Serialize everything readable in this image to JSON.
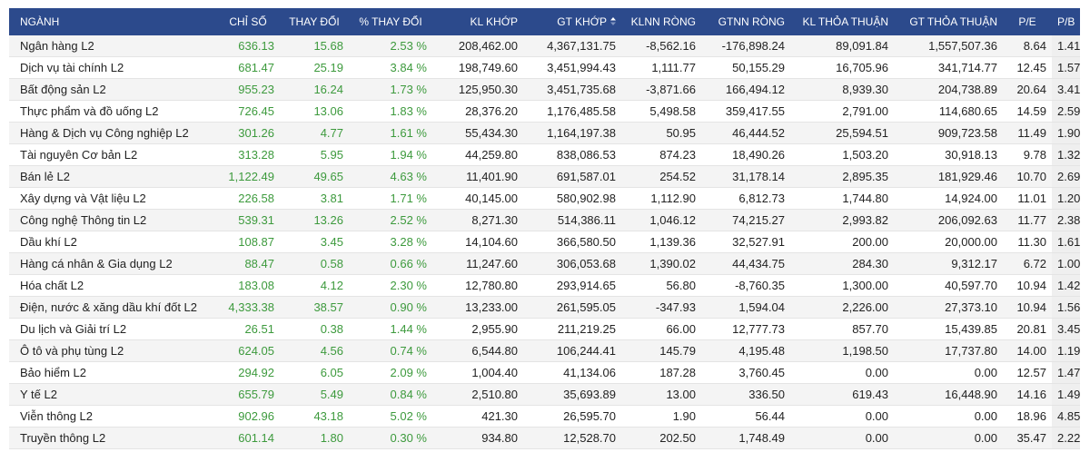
{
  "table": {
    "columns": [
      "NGÀNH",
      "CHỈ SỐ",
      "THAY ĐỔI",
      "% THAY ĐỔI",
      "KL KHỚP",
      "GT KHỚP",
      "KLNN RÒNG",
      "GTNN RÒNG",
      "KL THỎA THUẬN",
      "GT THỎA THUẬN",
      "P/E",
      "P/B"
    ],
    "sort_icon": "sort-arrows-icon",
    "sorted_column": "GT KHỚP",
    "colors": {
      "header_bg": "#2c4a8c",
      "positive": "#3d9a3d"
    },
    "rows": [
      [
        "Ngân hàng L2",
        "636.13",
        "15.68",
        "2.53 %",
        "208,462.00",
        "4,367,131.75",
        "-8,562.16",
        "-176,898.24",
        "89,091.84",
        "1,557,507.36",
        "8.64",
        "1.41"
      ],
      [
        "Dịch vụ tài chính L2",
        "681.47",
        "25.19",
        "3.84 %",
        "198,749.60",
        "3,451,994.43",
        "1,111.77",
        "50,155.29",
        "16,705.96",
        "341,714.77",
        "12.45",
        "1.57"
      ],
      [
        "Bất động sản L2",
        "955.23",
        "16.24",
        "1.73 %",
        "125,950.30",
        "3,451,735.68",
        "-3,871.66",
        "166,494.12",
        "8,939.30",
        "204,738.89",
        "20.64",
        "3.41"
      ],
      [
        "Thực phẩm và đồ uống L2",
        "726.45",
        "13.06",
        "1.83 %",
        "28,376.20",
        "1,176,485.58",
        "5,498.58",
        "359,417.55",
        "2,791.00",
        "114,680.65",
        "14.59",
        "2.59"
      ],
      [
        "Hàng & Dịch vụ Công nghiệp L2",
        "301.26",
        "4.77",
        "1.61 %",
        "55,434.30",
        "1,164,197.38",
        "50.95",
        "46,444.52",
        "25,594.51",
        "909,723.58",
        "11.49",
        "1.90"
      ],
      [
        "Tài nguyên Cơ bản L2",
        "313.28",
        "5.95",
        "1.94 %",
        "44,259.80",
        "838,086.53",
        "874.23",
        "18,490.26",
        "1,503.20",
        "30,918.13",
        "9.78",
        "1.32"
      ],
      [
        "Bán lẻ L2",
        "1,122.49",
        "49.65",
        "4.63 %",
        "11,401.90",
        "691,587.01",
        "254.52",
        "31,178.14",
        "2,895.35",
        "181,929.46",
        "10.70",
        "2.69"
      ],
      [
        "Xây dựng và Vật liệu L2",
        "226.58",
        "3.81",
        "1.71 %",
        "40,145.00",
        "580,902.98",
        "1,112.90",
        "6,812.73",
        "1,744.80",
        "14,924.00",
        "11.01",
        "1.20"
      ],
      [
        "Công nghệ Thông tin L2",
        "539.31",
        "13.26",
        "2.52 %",
        "8,271.30",
        "514,386.11",
        "1,046.12",
        "74,215.27",
        "2,993.82",
        "206,092.63",
        "11.77",
        "2.38"
      ],
      [
        "Dầu khí L2",
        "108.87",
        "3.45",
        "3.28 %",
        "14,104.60",
        "366,580.50",
        "1,139.36",
        "32,527.91",
        "200.00",
        "20,000.00",
        "11.30",
        "1.61"
      ],
      [
        "Hàng cá nhân & Gia dụng L2",
        "88.47",
        "0.58",
        "0.66 %",
        "11,247.60",
        "306,053.68",
        "1,390.02",
        "44,434.75",
        "284.30",
        "9,312.17",
        "6.72",
        "1.00"
      ],
      [
        "Hóa chất L2",
        "183.08",
        "4.12",
        "2.30 %",
        "12,780.80",
        "293,914.65",
        "56.80",
        "-8,760.35",
        "1,300.00",
        "40,597.70",
        "10.94",
        "1.42"
      ],
      [
        "Điện, nước & xăng dầu khí đốt L2",
        "4,333.38",
        "38.57",
        "0.90 %",
        "13,233.00",
        "261,595.05",
        "-347.93",
        "1,594.04",
        "2,226.00",
        "27,373.10",
        "10.94",
        "1.56"
      ],
      [
        "Du lịch và Giải trí L2",
        "26.51",
        "0.38",
        "1.44 %",
        "2,955.90",
        "211,219.25",
        "66.00",
        "12,777.73",
        "857.70",
        "15,439.85",
        "20.81",
        "3.45"
      ],
      [
        "Ô tô và phụ tùng L2",
        "624.05",
        "4.56",
        "0.74 %",
        "6,544.80",
        "106,244.41",
        "145.79",
        "4,195.48",
        "1,198.50",
        "17,737.80",
        "14.00",
        "1.19"
      ],
      [
        "Bảo hiểm L2",
        "294.92",
        "6.05",
        "2.09 %",
        "1,004.40",
        "41,134.06",
        "187.28",
        "3,760.45",
        "0.00",
        "0.00",
        "12.57",
        "1.47"
      ],
      [
        "Y tế L2",
        "655.79",
        "5.49",
        "0.84 %",
        "2,510.80",
        "35,693.89",
        "13.00",
        "336.50",
        "619.43",
        "16,448.90",
        "14.16",
        "1.49"
      ],
      [
        "Viễn thông L2",
        "902.96",
        "43.18",
        "5.02 %",
        "421.30",
        "26,595.70",
        "1.90",
        "56.44",
        "0.00",
        "0.00",
        "18.96",
        "4.85"
      ],
      [
        "Truyền thông L2",
        "601.14",
        "1.80",
        "0.30 %",
        "934.80",
        "12,528.70",
        "202.50",
        "1,748.49",
        "0.00",
        "0.00",
        "35.47",
        "2.22"
      ]
    ]
  }
}
